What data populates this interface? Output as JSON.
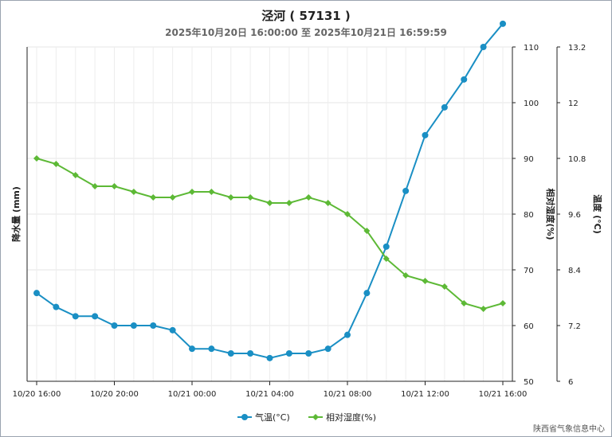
{
  "chart_data": {
    "type": "line",
    "title": "泾河 ( 57131 )",
    "subtitle": "2025年10月20日 16:00:00 至 2025年10月21日 16:59:59",
    "x": [
      "10/20 16:00",
      "10/20 17:00",
      "10/20 18:00",
      "10/20 19:00",
      "10/20 20:00",
      "10/20 21:00",
      "10/20 22:00",
      "10/20 23:00",
      "10/21 00:00",
      "10/21 01:00",
      "10/21 02:00",
      "10/21 03:00",
      "10/21 04:00",
      "10/21 05:00",
      "10/21 06:00",
      "10/21 07:00",
      "10/21 08:00",
      "10/21 09:00",
      "10/21 10:00",
      "10/21 11:00",
      "10/21 12:00",
      "10/21 13:00",
      "10/21 14:00",
      "10/21 15:00",
      "10/21 16:00"
    ],
    "x_tick_labels": [
      "10/20 16:00",
      "10/20 20:00",
      "10/21 00:00",
      "10/21 04:00",
      "10/21 08:00",
      "10/21 12:00",
      "10/21 16:00"
    ],
    "axes": {
      "left": {
        "label": "降水量 (mm)"
      },
      "right_humidity": {
        "label": "相对湿度(%)",
        "range": [
          50,
          110
        ],
        "ticks": [
          "50",
          "60",
          "70",
          "80",
          "90",
          "100",
          "110"
        ]
      },
      "right_temperature": {
        "label": "温度 (°C)",
        "range": [
          6,
          13.2
        ],
        "ticks": [
          "6",
          "7.2",
          "8.4",
          "9.6",
          "10.8",
          "12",
          "13.2"
        ]
      }
    },
    "grid": true,
    "legend_position": "bottom-center",
    "series": [
      {
        "name": "气温(°C)",
        "axis": "right_temperature",
        "color": "#1a8fc4",
        "marker": "circle",
        "values": [
          7.9,
          7.6,
          7.4,
          7.4,
          7.2,
          7.2,
          7.2,
          7.1,
          6.7,
          6.7,
          6.6,
          6.6,
          6.5,
          6.6,
          6.6,
          6.7,
          7.0,
          7.9,
          8.9,
          10.1,
          11.3,
          11.9,
          12.5,
          13.2,
          13.7
        ]
      },
      {
        "name": "相对湿度(%)",
        "axis": "right_humidity",
        "color": "#5db936",
        "marker": "diamond",
        "values": [
          90,
          89,
          87,
          85,
          85,
          84,
          83,
          83,
          84,
          84,
          83,
          83,
          82,
          82,
          83,
          82,
          80,
          77,
          72,
          69,
          68,
          67,
          64,
          63,
          64
        ]
      }
    ]
  },
  "credit": "陕西省气象信息中心"
}
